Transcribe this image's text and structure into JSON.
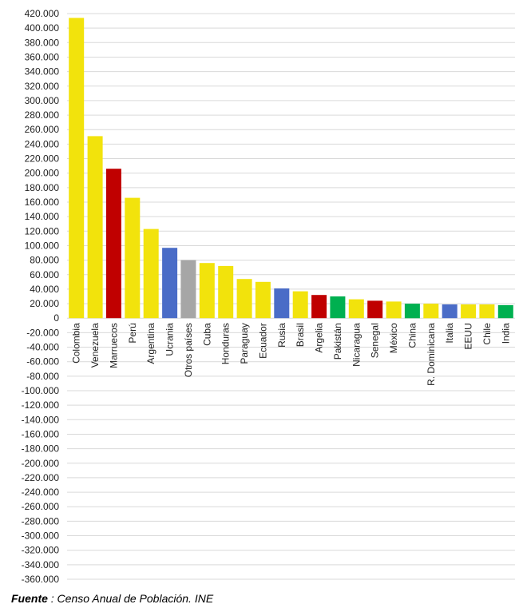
{
  "chart_data": {
    "type": "bar",
    "categories": [
      "Colombia",
      "Venezuela",
      "Marruecos",
      "Perú",
      "Argentina",
      "Ucrania",
      "Otros países",
      "Cuba",
      "Honduras",
      "Paraguay",
      "Ecuador",
      "Rusia",
      "Brasil",
      "Argelia",
      "Pakistán",
      "Nicaragua",
      "Senegal",
      "México",
      "China",
      "R. Dominicana",
      "Italia",
      "EEUU",
      "Chile",
      "India"
    ],
    "values": [
      414000,
      251000,
      206000,
      166000,
      123000,
      97000,
      80000,
      76000,
      72000,
      54000,
      50000,
      41000,
      37000,
      32000,
      30000,
      26000,
      24000,
      23000,
      20000,
      20000,
      19000,
      19000,
      19000,
      18000
    ],
    "bar_colors": [
      "#f2e30c",
      "#f2e30c",
      "#c00000",
      "#f2e30c",
      "#f2e30c",
      "#4a6cc7",
      "#a6a6a6",
      "#f2e30c",
      "#f2e30c",
      "#f2e30c",
      "#f2e30c",
      "#4a6cc7",
      "#f2e30c",
      "#c00000",
      "#00b050",
      "#f2e30c",
      "#c00000",
      "#f2e30c",
      "#00b050",
      "#f2e30c",
      "#4a6cc7",
      "#f2e30c",
      "#f2e30c",
      "#00b050"
    ],
    "ylim": [
      -360000,
      420000
    ],
    "ytick_step": 20000,
    "ytick_labels": [
      "420.000",
      "400.000",
      "380.000",
      "360.000",
      "340.000",
      "320.000",
      "300.000",
      "280.000",
      "260.000",
      "240.000",
      "220.000",
      "200.000",
      "180.000",
      "160.000",
      "140.000",
      "120.000",
      "100.000",
      "80.000",
      "60.000",
      "40.000",
      "20.000",
      "0",
      "-20.000",
      "-40.000",
      "-60.000",
      "-80.000",
      "-100.000",
      "-120.000",
      "-140.000",
      "-160.000",
      "-180.000",
      "-200.000",
      "-220.000",
      "-240.000",
      "-260.000",
      "-280.000",
      "-300.000",
      "-320.000",
      "-340.000",
      "-360.000"
    ],
    "grid": true,
    "gridline_color": "#d9d9d9"
  },
  "footer": {
    "source_label": "Fuente",
    "source_text": " : Censo Anual de Población. INE"
  }
}
